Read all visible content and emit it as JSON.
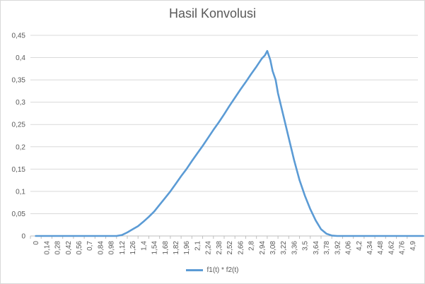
{
  "chart_data": {
    "type": "line",
    "title": "Hasil Konvolusi",
    "xlabel": "",
    "ylabel": "",
    "ylim": [
      0,
      0.45
    ],
    "yticks": [
      "0",
      "0,05",
      "0,1",
      "0,15",
      "0,2",
      "0,25",
      "0,3",
      "0,35",
      "0,4",
      "0,45"
    ],
    "xticks": [
      "0",
      "0,14",
      "0,28",
      "0,42",
      "0,56",
      "0,7",
      "0,84",
      "0,98",
      "1,12",
      "1,26",
      "1,4",
      "1,54",
      "1,68",
      "1,82",
      "1,96",
      "2,1",
      "2,24",
      "2,38",
      "2,52",
      "2,66",
      "2,8",
      "2,94",
      "3,08",
      "3,22",
      "3,36",
      "3,5",
      "3,64",
      "3,78",
      "3,92",
      "4,06",
      "4,2",
      "4,34",
      "4,48",
      "4,62",
      "4,76",
      "4,9"
    ],
    "grid": true,
    "legend_position": "bottom",
    "series": [
      {
        "name": "f1(t) * f2(t)",
        "color": "#5b9bd5",
        "x": [
          0,
          0.14,
          0.28,
          0.42,
          0.56,
          0.7,
          0.84,
          0.98,
          1.05,
          1.12,
          1.19,
          1.26,
          1.33,
          1.4,
          1.47,
          1.54,
          1.61,
          1.68,
          1.75,
          1.82,
          1.89,
          1.96,
          2.03,
          2.1,
          2.17,
          2.24,
          2.31,
          2.38,
          2.45,
          2.52,
          2.59,
          2.66,
          2.73,
          2.8,
          2.87,
          2.94,
          2.98,
          3.01,
          3.05,
          3.08,
          3.12,
          3.15,
          3.22,
          3.29,
          3.36,
          3.43,
          3.5,
          3.57,
          3.64,
          3.71,
          3.78,
          3.85,
          3.92,
          3.99,
          4.06,
          4.2,
          4.34,
          4.48,
          4.62,
          4.76,
          4.9,
          5.04
        ],
        "values": [
          0,
          0,
          0,
          0,
          0,
          0,
          0,
          0,
          0,
          0.002,
          0.008,
          0.015,
          0.022,
          0.032,
          0.043,
          0.055,
          0.07,
          0.085,
          0.1,
          0.117,
          0.134,
          0.15,
          0.168,
          0.185,
          0.202,
          0.22,
          0.238,
          0.255,
          0.273,
          0.292,
          0.31,
          0.328,
          0.345,
          0.363,
          0.38,
          0.398,
          0.405,
          0.415,
          0.395,
          0.37,
          0.35,
          0.32,
          0.27,
          0.22,
          0.17,
          0.125,
          0.09,
          0.06,
          0.035,
          0.015,
          0.005,
          0.001,
          0,
          0,
          0,
          0,
          0,
          0,
          0,
          0,
          0,
          0
        ]
      }
    ]
  }
}
